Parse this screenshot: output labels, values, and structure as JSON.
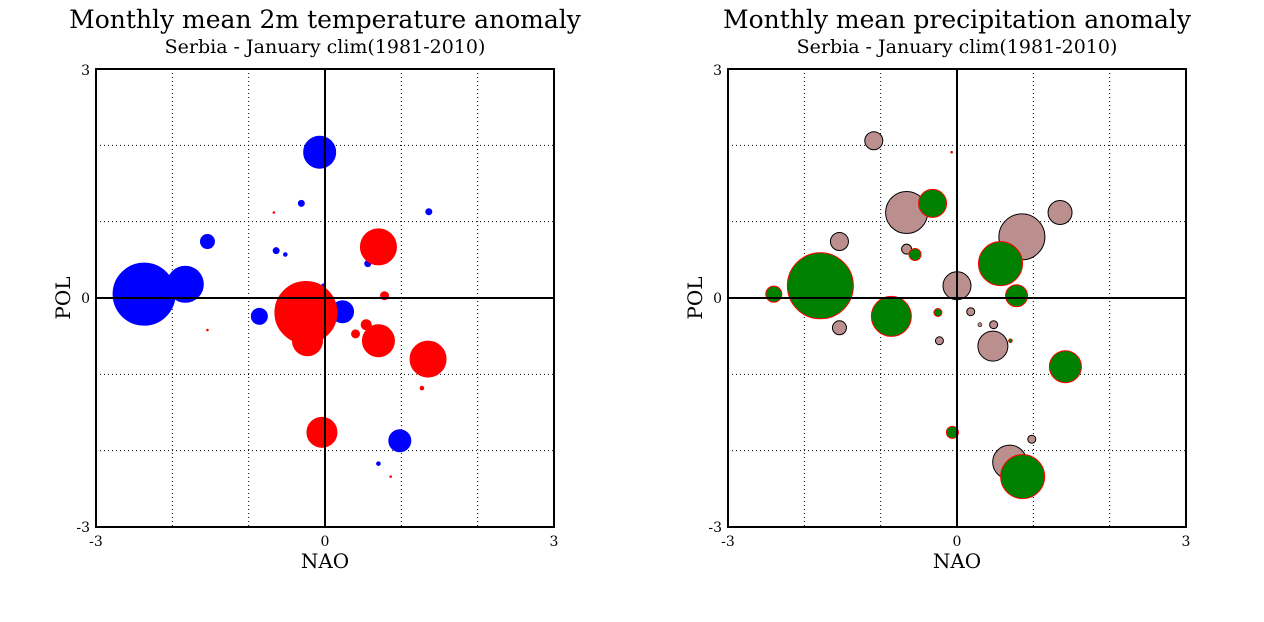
{
  "chart_data": [
    {
      "type": "scatter",
      "title": "Monthly mean 2m temperature anomaly",
      "subtitle": "Serbia - January  clim(1981-2010)",
      "xlabel": "NAO",
      "ylabel": "POL",
      "xlim": [
        -3,
        3
      ],
      "ylim": [
        -3,
        3
      ],
      "x_ticks": [
        "-3",
        "0",
        "3"
      ],
      "y_ticks": [
        "3",
        "0",
        "-3"
      ],
      "grid": true,
      "grid_style": "dotted",
      "zero_lines": true,
      "bubble_size": "anomaly magnitude",
      "colors": {
        "negative": "#0000ff",
        "positive": "#ff0000"
      },
      "points": [
        {
          "x": -2.37,
          "y": 0.05,
          "r": 31,
          "sign": "negative"
        },
        {
          "x": -1.83,
          "y": 0.18,
          "r": 18,
          "sign": "negative"
        },
        {
          "x": -1.54,
          "y": 0.74,
          "r": 7,
          "sign": "negative"
        },
        {
          "x": -0.07,
          "y": 1.91,
          "r": 16,
          "sign": "negative"
        },
        {
          "x": -0.31,
          "y": 1.24,
          "r": 3,
          "sign": "negative"
        },
        {
          "x": -0.64,
          "y": 0.62,
          "r": 3,
          "sign": "negative"
        },
        {
          "x": -0.52,
          "y": 0.57,
          "r": 2,
          "sign": "negative"
        },
        {
          "x": 1.36,
          "y": 1.13,
          "r": 3,
          "sign": "negative"
        },
        {
          "x": 0.56,
          "y": 0.45,
          "r": 3,
          "sign": "negative"
        },
        {
          "x": -0.86,
          "y": -0.24,
          "r": 8,
          "sign": "negative"
        },
        {
          "x": 0.23,
          "y": -0.18,
          "r": 11,
          "sign": "negative"
        },
        {
          "x": 0.98,
          "y": -1.87,
          "r": 11,
          "sign": "negative"
        },
        {
          "x": 0.7,
          "y": -2.17,
          "r": 2,
          "sign": "negative"
        },
        {
          "x": -0.02,
          "y": 0.16,
          "r": 2,
          "sign": "negative"
        },
        {
          "x": -0.25,
          "y": -0.19,
          "r": 31,
          "sign": "positive"
        },
        {
          "x": 0.7,
          "y": 0.67,
          "r": 18,
          "sign": "positive"
        },
        {
          "x": -0.23,
          "y": -0.56,
          "r": 15,
          "sign": "positive"
        },
        {
          "x": 0.7,
          "y": -0.56,
          "r": 16,
          "sign": "positive"
        },
        {
          "x": 1.35,
          "y": -0.8,
          "r": 18,
          "sign": "positive"
        },
        {
          "x": -0.04,
          "y": -1.76,
          "r": 15,
          "sign": "positive"
        },
        {
          "x": 0.78,
          "y": 0.03,
          "r": 4,
          "sign": "positive"
        },
        {
          "x": 0.54,
          "y": -0.35,
          "r": 5,
          "sign": "positive"
        },
        {
          "x": 0.4,
          "y": -0.47,
          "r": 4,
          "sign": "positive"
        },
        {
          "x": 1.27,
          "y": -1.18,
          "r": 2,
          "sign": "positive"
        },
        {
          "x": 0.86,
          "y": -2.34,
          "r": 1,
          "sign": "positive"
        },
        {
          "x": -1.54,
          "y": -0.42,
          "r": 1,
          "sign": "positive"
        },
        {
          "x": -0.67,
          "y": 1.12,
          "r": 1,
          "sign": "positive"
        }
      ]
    },
    {
      "type": "scatter",
      "title": "Monthly mean precipitation anomaly",
      "subtitle": "Serbia - January  clim(1981-2010)",
      "xlabel": "NAO",
      "ylabel": "POL",
      "xlim": [
        -3,
        3
      ],
      "ylim": [
        -3,
        3
      ],
      "x_ticks": [
        "-3",
        "0",
        "3"
      ],
      "y_ticks": [
        "3",
        "0",
        "-3"
      ],
      "grid": true,
      "grid_style": "dotted",
      "zero_lines": true,
      "bubble_size": "anomaly magnitude",
      "colors": {
        "negative": "#bc8f8f",
        "positive": "#008000",
        "positive_outline": "#ff0000"
      },
      "points": [
        {
          "x": -1.09,
          "y": 2.06,
          "r": 9,
          "sign": "negative"
        },
        {
          "x": -0.66,
          "y": 1.12,
          "r": 21,
          "sign": "negative"
        },
        {
          "x": -1.54,
          "y": 0.74,
          "r": 9,
          "sign": "negative"
        },
        {
          "x": -0.66,
          "y": 0.64,
          "r": 5,
          "sign": "negative"
        },
        {
          "x": 0.85,
          "y": 0.8,
          "r": 23,
          "sign": "negative"
        },
        {
          "x": 1.35,
          "y": 1.12,
          "r": 12,
          "sign": "negative"
        },
        {
          "x": 0.0,
          "y": 0.16,
          "r": 14,
          "sign": "negative"
        },
        {
          "x": -1.54,
          "y": -0.39,
          "r": 7,
          "sign": "negative"
        },
        {
          "x": 0.18,
          "y": -0.18,
          "r": 4,
          "sign": "negative"
        },
        {
          "x": 0.3,
          "y": -0.35,
          "r": 2,
          "sign": "negative"
        },
        {
          "x": 0.48,
          "y": -0.35,
          "r": 4,
          "sign": "negative"
        },
        {
          "x": 0.47,
          "y": -0.63,
          "r": 15,
          "sign": "negative"
        },
        {
          "x": -0.23,
          "y": -0.56,
          "r": 4,
          "sign": "negative"
        },
        {
          "x": 0.69,
          "y": -2.15,
          "r": 17,
          "sign": "negative"
        },
        {
          "x": 0.98,
          "y": -1.85,
          "r": 4,
          "sign": "negative"
        },
        {
          "x": -1.79,
          "y": 0.16,
          "r": 33,
          "sign": "positive"
        },
        {
          "x": -0.32,
          "y": 1.24,
          "r": 14,
          "sign": "positive"
        },
        {
          "x": -0.55,
          "y": 0.57,
          "r": 6,
          "sign": "positive"
        },
        {
          "x": 0.57,
          "y": 0.45,
          "r": 22,
          "sign": "positive"
        },
        {
          "x": 0.78,
          "y": 0.03,
          "r": 11,
          "sign": "positive"
        },
        {
          "x": -2.4,
          "y": 0.05,
          "r": 8,
          "sign": "positive"
        },
        {
          "x": -0.86,
          "y": -0.24,
          "r": 20,
          "sign": "positive"
        },
        {
          "x": -0.25,
          "y": -0.19,
          "r": 4,
          "sign": "positive"
        },
        {
          "x": 1.42,
          "y": -0.9,
          "r": 16,
          "sign": "positive"
        },
        {
          "x": -0.06,
          "y": -1.76,
          "r": 6,
          "sign": "positive"
        },
        {
          "x": 0.86,
          "y": -2.34,
          "r": 22,
          "sign": "positive"
        },
        {
          "x": -0.07,
          "y": 1.91,
          "r": 1,
          "sign": "positive"
        },
        {
          "x": 0.7,
          "y": -0.56,
          "r": 2,
          "sign": "positive"
        }
      ]
    }
  ]
}
